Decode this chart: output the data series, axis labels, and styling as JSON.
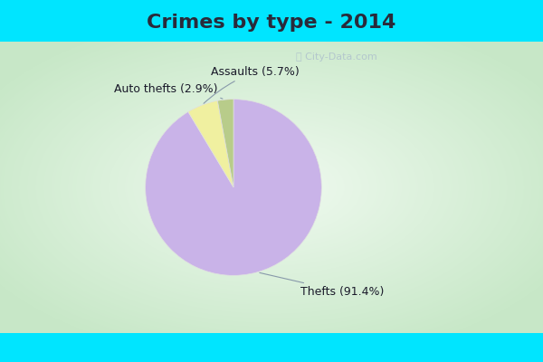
{
  "title": "Crimes by type - 2014",
  "slices": [
    {
      "label": "Thefts",
      "pct": 91.4,
      "color": "#c9b3e8"
    },
    {
      "label": "Assaults",
      "pct": 5.7,
      "color": "#f0f0a0"
    },
    {
      "label": "Auto thefts",
      "pct": 2.9,
      "color": "#b8cc8a"
    }
  ],
  "background_cyan": "#00e5ff",
  "background_center": "#f0faf0",
  "background_edge": "#c8e8c8",
  "title_fontsize": 16,
  "label_fontsize": 9,
  "watermark": "ⓘ City-Data.com",
  "title_color": "#2a2a3a",
  "label_color": "#1a1a2a"
}
